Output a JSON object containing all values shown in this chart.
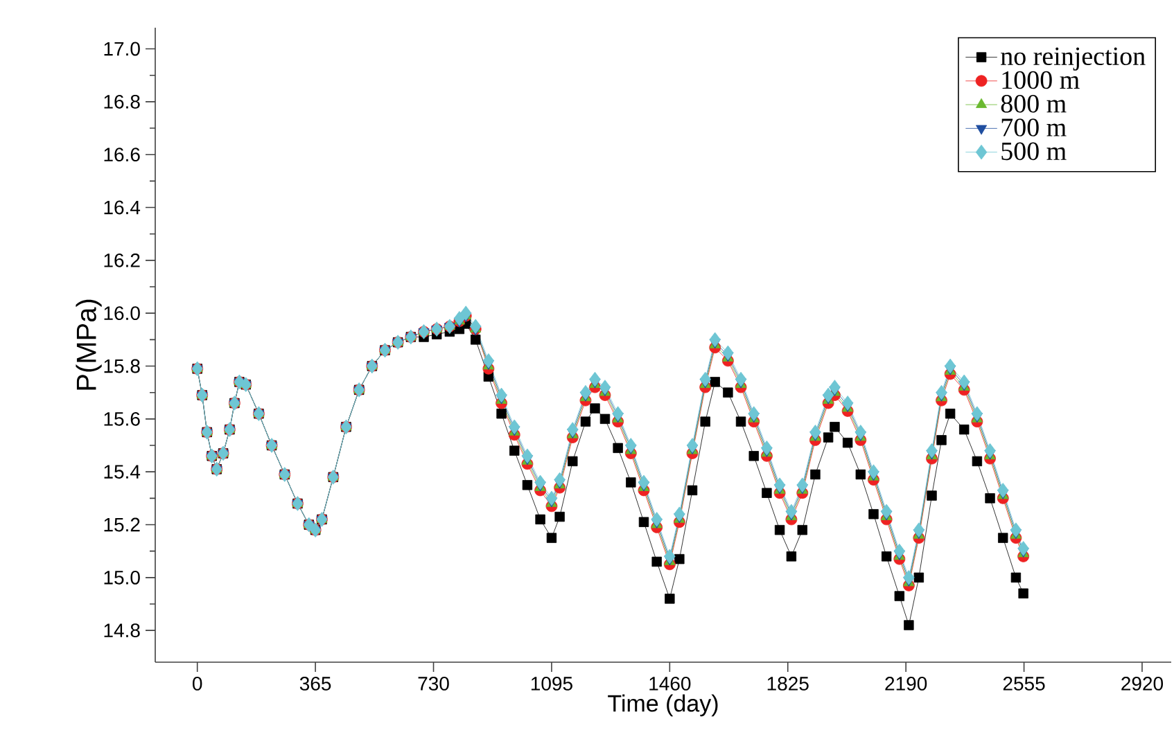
{
  "chart_data": {
    "type": "line",
    "xlabel": "Time (day)",
    "ylabel": "P(MPa)",
    "legend": "top right",
    "grid": false,
    "xlim": [
      -130,
      3010
    ],
    "ylim": [
      14.68,
      17.08
    ],
    "xticks": [
      0,
      365,
      730,
      1095,
      1460,
      1825,
      2190,
      2555,
      2920
    ],
    "yticks": [
      14.8,
      {
        "value": 15,
        "label": "15.0"
      },
      15.2,
      15.4,
      15.6,
      15.8,
      {
        "value": 16,
        "label": "16.0"
      },
      16.2,
      16.4,
      16.6,
      16.8,
      {
        "value": 17,
        "label": "17.0"
      }
    ],
    "x": [
      0,
      15,
      30,
      45,
      60,
      80,
      100,
      115,
      130,
      150,
      190,
      230,
      270,
      310,
      345,
      365,
      385,
      420,
      460,
      500,
      540,
      580,
      620,
      660,
      700,
      740,
      780,
      810,
      830,
      860,
      900,
      940,
      980,
      1020,
      1060,
      1095,
      1120,
      1160,
      1200,
      1229,
      1260,
      1300,
      1340,
      1380,
      1420,
      1460,
      1490,
      1530,
      1570,
      1600,
      1640,
      1680,
      1720,
      1760,
      1800,
      1836,
      1870,
      1910,
      1950,
      1970,
      2010,
      2050,
      2090,
      2130,
      2170,
      2199,
      2230,
      2270,
      2300,
      2327,
      2370,
      2410,
      2450,
      2490,
      2530,
      2553
    ],
    "series": [
      {
        "name": "no reinjection",
        "color": "#000000",
        "marker": "square",
        "values": [
          15.79,
          15.69,
          15.55,
          15.46,
          15.41,
          15.47,
          15.56,
          15.66,
          15.74,
          15.73,
          15.62,
          15.5,
          15.39,
          15.28,
          15.2,
          15.18,
          15.22,
          15.38,
          15.57,
          15.71,
          15.8,
          15.86,
          15.89,
          15.91,
          15.91,
          15.92,
          15.93,
          15.94,
          15.96,
          15.9,
          15.76,
          15.62,
          15.48,
          15.35,
          15.22,
          15.15,
          15.23,
          15.44,
          15.59,
          15.64,
          15.6,
          15.49,
          15.36,
          15.21,
          15.06,
          14.92,
          15.07,
          15.33,
          15.59,
          15.74,
          15.7,
          15.59,
          15.46,
          15.32,
          15.18,
          15.08,
          15.18,
          15.39,
          15.53,
          15.57,
          15.51,
          15.39,
          15.24,
          15.08,
          14.93,
          14.82,
          15.0,
          15.31,
          15.52,
          15.62,
          15.56,
          15.44,
          15.3,
          15.15,
          15.0,
          14.94
        ]
      },
      {
        "name": "1000 m",
        "color": "#ee2222",
        "marker": "circle",
        "values": [
          15.79,
          15.69,
          15.55,
          15.46,
          15.41,
          15.47,
          15.56,
          15.66,
          15.74,
          15.73,
          15.62,
          15.5,
          15.39,
          15.28,
          15.2,
          15.18,
          15.22,
          15.38,
          15.57,
          15.71,
          15.8,
          15.86,
          15.89,
          15.91,
          15.93,
          15.94,
          15.95,
          15.97,
          15.99,
          15.94,
          15.79,
          15.66,
          15.54,
          15.43,
          15.33,
          15.27,
          15.34,
          15.53,
          15.67,
          15.72,
          15.69,
          15.59,
          15.47,
          15.33,
          15.19,
          15.05,
          15.21,
          15.47,
          15.72,
          15.87,
          15.82,
          15.72,
          15.59,
          15.46,
          15.32,
          15.22,
          15.32,
          15.52,
          15.66,
          15.69,
          15.63,
          15.52,
          15.37,
          15.22,
          15.07,
          14.97,
          15.15,
          15.45,
          15.67,
          15.77,
          15.71,
          15.59,
          15.45,
          15.3,
          15.15,
          15.08
        ]
      },
      {
        "name": "800 m",
        "color": "#6ab92f",
        "marker": "triangle",
        "values": [
          15.79,
          15.69,
          15.55,
          15.46,
          15.41,
          15.47,
          15.56,
          15.66,
          15.74,
          15.73,
          15.62,
          15.5,
          15.39,
          15.28,
          15.2,
          15.18,
          15.22,
          15.38,
          15.57,
          15.71,
          15.8,
          15.86,
          15.89,
          15.91,
          15.93,
          15.94,
          15.95,
          15.97,
          15.99,
          15.94,
          15.8,
          15.67,
          15.55,
          15.44,
          15.34,
          15.28,
          15.35,
          15.54,
          15.68,
          15.73,
          15.7,
          15.6,
          15.48,
          15.34,
          15.2,
          15.06,
          15.22,
          15.48,
          15.73,
          15.88,
          15.83,
          15.73,
          15.6,
          15.47,
          15.33,
          15.23,
          15.33,
          15.53,
          15.67,
          15.7,
          15.64,
          15.53,
          15.38,
          15.23,
          15.08,
          14.98,
          15.16,
          15.46,
          15.68,
          15.78,
          15.72,
          15.6,
          15.46,
          15.31,
          15.16,
          15.09
        ]
      },
      {
        "name": "700 m",
        "color": "#1f4e9f",
        "marker": "triangle down",
        "values": [
          15.79,
          15.69,
          15.55,
          15.46,
          15.41,
          15.47,
          15.56,
          15.66,
          15.74,
          15.73,
          15.62,
          15.5,
          15.39,
          15.28,
          15.2,
          15.18,
          15.22,
          15.38,
          15.57,
          15.71,
          15.8,
          15.86,
          15.89,
          15.91,
          15.93,
          15.94,
          15.95,
          15.97,
          15.99,
          15.94,
          15.81,
          15.68,
          15.56,
          15.45,
          15.35,
          15.29,
          15.36,
          15.55,
          15.69,
          15.74,
          15.71,
          15.61,
          15.49,
          15.35,
          15.21,
          15.07,
          15.23,
          15.49,
          15.74,
          15.89,
          15.84,
          15.74,
          15.61,
          15.48,
          15.34,
          15.24,
          15.34,
          15.54,
          15.68,
          15.71,
          15.65,
          15.54,
          15.39,
          15.24,
          15.09,
          14.99,
          15.17,
          15.47,
          15.69,
          15.79,
          15.73,
          15.61,
          15.47,
          15.32,
          15.17,
          15.1
        ]
      },
      {
        "name": "500 m",
        "color": "#6ec6d4",
        "marker": "diamond",
        "values": [
          15.79,
          15.69,
          15.55,
          15.46,
          15.41,
          15.47,
          15.56,
          15.66,
          15.74,
          15.73,
          15.62,
          15.5,
          15.39,
          15.28,
          15.2,
          15.18,
          15.22,
          15.38,
          15.57,
          15.71,
          15.8,
          15.86,
          15.89,
          15.91,
          15.93,
          15.94,
          15.95,
          15.98,
          16.0,
          15.95,
          15.82,
          15.69,
          15.57,
          15.46,
          15.36,
          15.3,
          15.37,
          15.56,
          15.7,
          15.75,
          15.72,
          15.62,
          15.5,
          15.36,
          15.22,
          15.08,
          15.24,
          15.5,
          15.75,
          15.9,
          15.85,
          15.75,
          15.62,
          15.49,
          15.35,
          15.25,
          15.35,
          15.55,
          15.69,
          15.72,
          15.66,
          15.55,
          15.4,
          15.25,
          15.1,
          15.0,
          15.18,
          15.48,
          15.7,
          15.8,
          15.74,
          15.62,
          15.48,
          15.33,
          15.18,
          15.11
        ]
      }
    ]
  }
}
